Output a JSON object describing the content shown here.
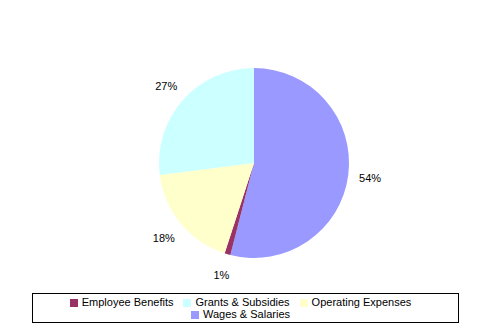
{
  "chart_data": {
    "type": "pie",
    "categories": [
      "Wages & Salaries",
      "Employee Benefits",
      "Operating Expenses",
      "Grants & Subsidies"
    ],
    "values": [
      54,
      1,
      18,
      27
    ],
    "value_labels": [
      "54%",
      "1%",
      "18%",
      "27%"
    ],
    "colors": [
      "#9999ff",
      "#993366",
      "#ffffcc",
      "#ccffff"
    ],
    "data_labels": true,
    "legend": "bottom"
  }
}
